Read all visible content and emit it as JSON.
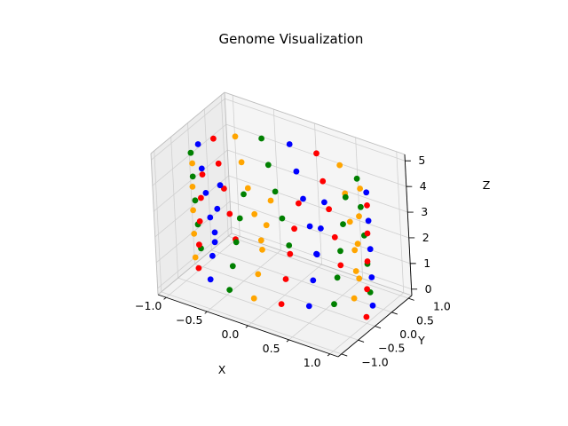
{
  "chart_data": {
    "type": "scatter",
    "projection": "3d",
    "title": "Genome Visualization",
    "xlabel": "X",
    "ylabel": "Y",
    "zlabel": "Z",
    "xlim": [
      -1.1,
      1.1
    ],
    "ylim": [
      -1.1,
      1.1
    ],
    "zlim": [
      -0.25,
      5.25
    ],
    "xticks": [
      "−1.0",
      "−0.5",
      "0.0",
      "0.5",
      "1.0"
    ],
    "yticks": [
      "−1.0",
      "−0.5",
      "0.0",
      "0.5",
      "1.0"
    ],
    "zticks": [
      "0",
      "1",
      "2",
      "3",
      "4",
      "5"
    ],
    "grid": true,
    "description_of_points": "Helix: x = cos(t), y = sin(t), z = t/(2π) for t from 0 to 10π, 100 points, colors cycling red, blue, green, orange",
    "point_count": 100,
    "t_range": [
      0,
      31.4159
    ],
    "color_cycle": [
      "#ff0000",
      "#0000ff",
      "#008000",
      "#ffa500"
    ]
  }
}
